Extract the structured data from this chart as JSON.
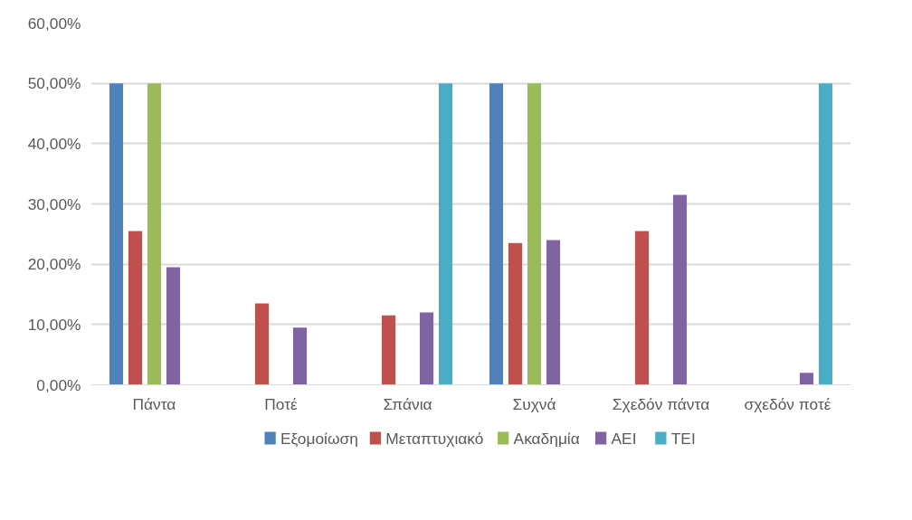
{
  "chart_data": {
    "type": "bar",
    "categories": [
      "Πάντα",
      "Ποτέ",
      "Σπάνια",
      "Συχνά",
      "Σχεδόν πάντα",
      "σχεδόν ποτέ"
    ],
    "series": [
      {
        "name": "Εξομοίωση",
        "color": "#4f81bd",
        "values": [
          50,
          0,
          0,
          50,
          0,
          0
        ]
      },
      {
        "name": "Μεταπτυχιακό",
        "color": "#c0504d",
        "values": [
          25.5,
          13.5,
          11.5,
          23.5,
          25.5,
          0
        ]
      },
      {
        "name": "Ακαδημία",
        "color": "#9bbb59",
        "values": [
          50,
          0,
          0,
          50,
          0,
          0
        ]
      },
      {
        "name": "ΑΕΙ",
        "color": "#8064a2",
        "values": [
          19.5,
          9.5,
          12,
          24,
          31.5,
          2
        ]
      },
      {
        "name": "ΤΕΙ",
        "color": "#4bacc6",
        "values": [
          0,
          0,
          50,
          0,
          0,
          50
        ]
      }
    ],
    "ylim": [
      0,
      60
    ],
    "yticks": [
      {
        "value": 0,
        "label": "0,00%"
      },
      {
        "value": 10,
        "label": "10,00%"
      },
      {
        "value": 20,
        "label": "20,00%"
      },
      {
        "value": 30,
        "label": "30,00%"
      },
      {
        "value": 40,
        "label": "40,00%"
      },
      {
        "value": 50,
        "label": "50,00%"
      },
      {
        "value": 60,
        "label": "60,00%"
      }
    ],
    "grid": "y",
    "legend": "bottom"
  }
}
